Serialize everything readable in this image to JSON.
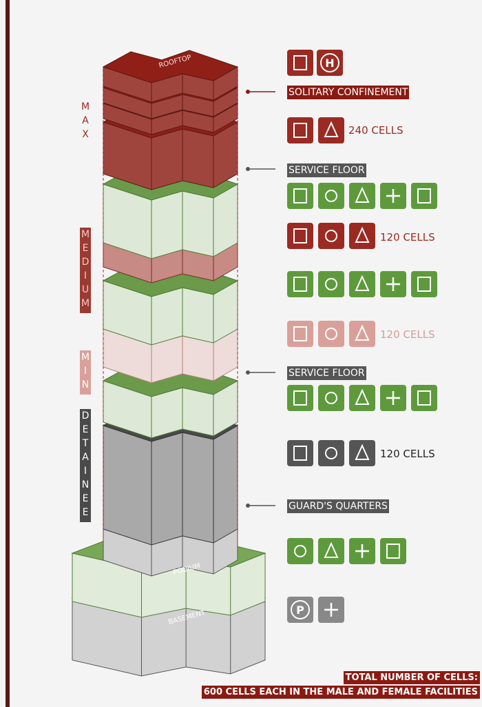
{
  "tower": {
    "rooftop": "ROOFTOP",
    "podium": "PODIUM",
    "basement": "BASEMENT"
  },
  "levels": [
    "MAX",
    "MEDIUM",
    "MIN",
    "DETAINEE"
  ],
  "callouts": [
    "SOLITARY CONFINEMENT",
    "SERVICE FLOOR",
    "SERVICE FLOOR",
    "GUARD'S QUARTERS"
  ],
  "cells": [
    "240 CELLS",
    "120 CELLS",
    "120 CELLS",
    "120 CELLS"
  ],
  "icons": {
    "helipad": "H",
    "parking": "P"
  },
  "footer": {
    "line1": "TOTAL NUMBER OF CELLS:",
    "line2": "600 CELLS EACH IN THE MALE AND FEMALE FACILITIES"
  }
}
